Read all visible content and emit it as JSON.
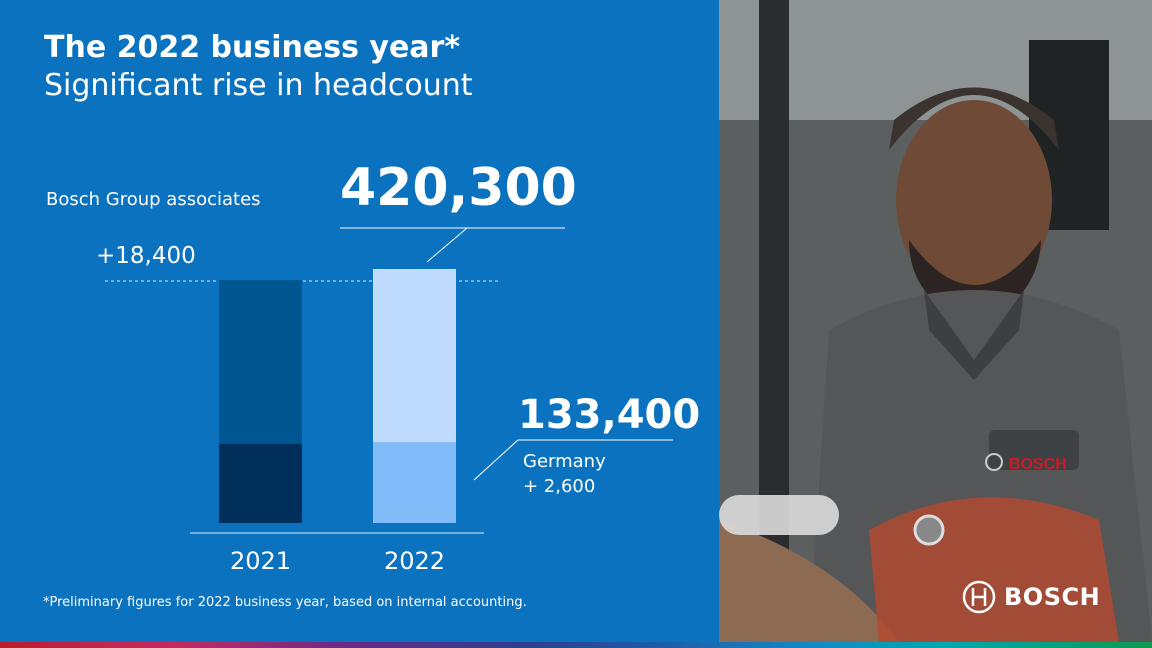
{
  "slide": {
    "title": "The 2022 business year*",
    "subtitle": "Significant rise in headcount",
    "footnote": "*Preliminary figures for 2022 business year, based on internal accounting.",
    "brand": "BOSCH"
  },
  "chart_data": {
    "type": "bar",
    "stacked": true,
    "series_label": "Bosch Group associates",
    "categories": [
      "2021",
      "2022"
    ],
    "totals": [
      401900,
      420300
    ],
    "germany": [
      130800,
      133400
    ],
    "callouts": {
      "total_2022": "420,300",
      "total_increase": "+18,400",
      "germany_2022": "133,400",
      "germany_label": "Germany",
      "germany_increase": "+ 2,600"
    },
    "colors": {
      "bar_2021_other": "#005691",
      "bar_2021_germany": "#003059",
      "bar_2022_other": "#bfdcff",
      "bar_2022_germany": "#82bcf8"
    },
    "ylim": [
      0,
      420300
    ]
  },
  "colors": {
    "background": "#0a72bf",
    "text": "#ffffff"
  }
}
